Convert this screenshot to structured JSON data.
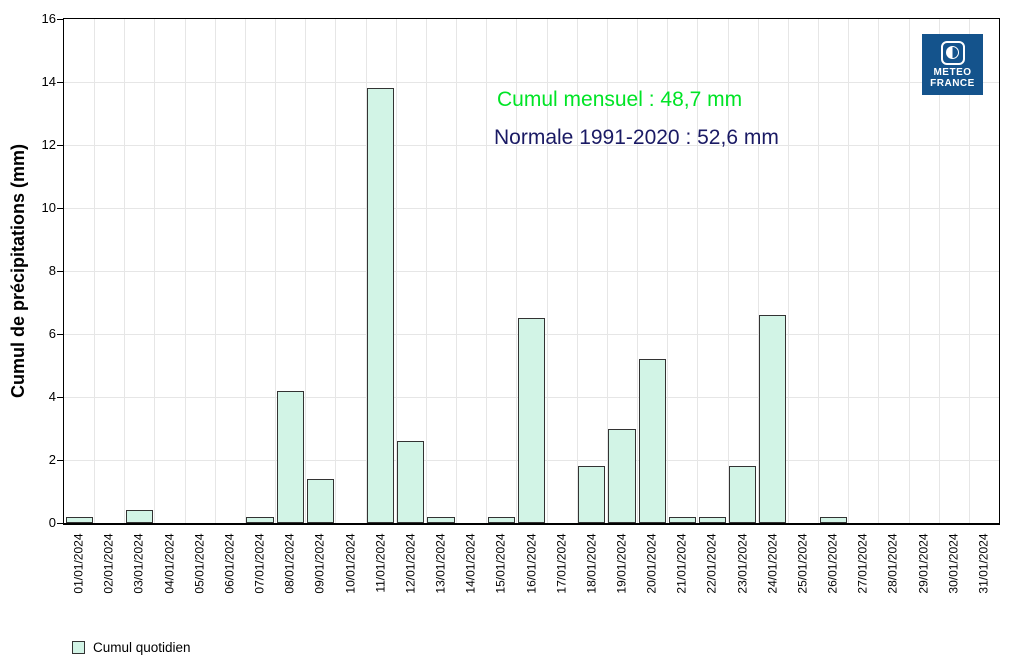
{
  "chart_data": {
    "type": "bar",
    "categories": [
      "01/01/2024",
      "02/01/2024",
      "03/01/2024",
      "04/01/2024",
      "05/01/2024",
      "06/01/2024",
      "07/01/2024",
      "08/01/2024",
      "09/01/2024",
      "10/01/2024",
      "11/01/2024",
      "12/01/2024",
      "13/01/2024",
      "14/01/2024",
      "15/01/2024",
      "16/01/2024",
      "17/01/2024",
      "18/01/2024",
      "19/01/2024",
      "20/01/2024",
      "21/01/2024",
      "22/01/2024",
      "23/01/2024",
      "24/01/2024",
      "25/01/2024",
      "26/01/2024",
      "27/01/2024",
      "28/01/2024",
      "29/01/2024",
      "30/01/2024",
      "31/01/2024"
    ],
    "values": [
      0.2,
      0,
      0.4,
      0,
      0,
      0,
      0.2,
      4.2,
      1.4,
      0,
      13.8,
      2.6,
      0.2,
      0,
      0.2,
      6.5,
      0,
      1.8,
      3,
      5.2,
      0.2,
      0.2,
      1.8,
      6.6,
      0,
      0.2,
      0,
      0,
      0,
      0,
      0
    ],
    "series_name": "Cumul quotidien",
    "ylabel": "Cumul de précipitations (mm)",
    "xlabel": "",
    "ylim": [
      0,
      16
    ],
    "ytick_step": 2,
    "grid": true,
    "legend_position": "bottom-left",
    "colors": {
      "bar_fill": "#d2f4e6",
      "bar_border": "#333333",
      "gridline": "#e6e6e6",
      "axis": "#000000"
    }
  },
  "annotations": {
    "monthly_total": {
      "text": "Cumul mensuel : 48,7 mm",
      "color": "#00e426"
    },
    "normal": {
      "text": "Normale 1991-2020 : 52,6 mm",
      "color": "#1a1a64"
    }
  },
  "legend": {
    "label": "Cumul quotidien"
  },
  "logo": {
    "line1": "METEO",
    "line2": "FRANCE",
    "bg": "#14538c"
  }
}
